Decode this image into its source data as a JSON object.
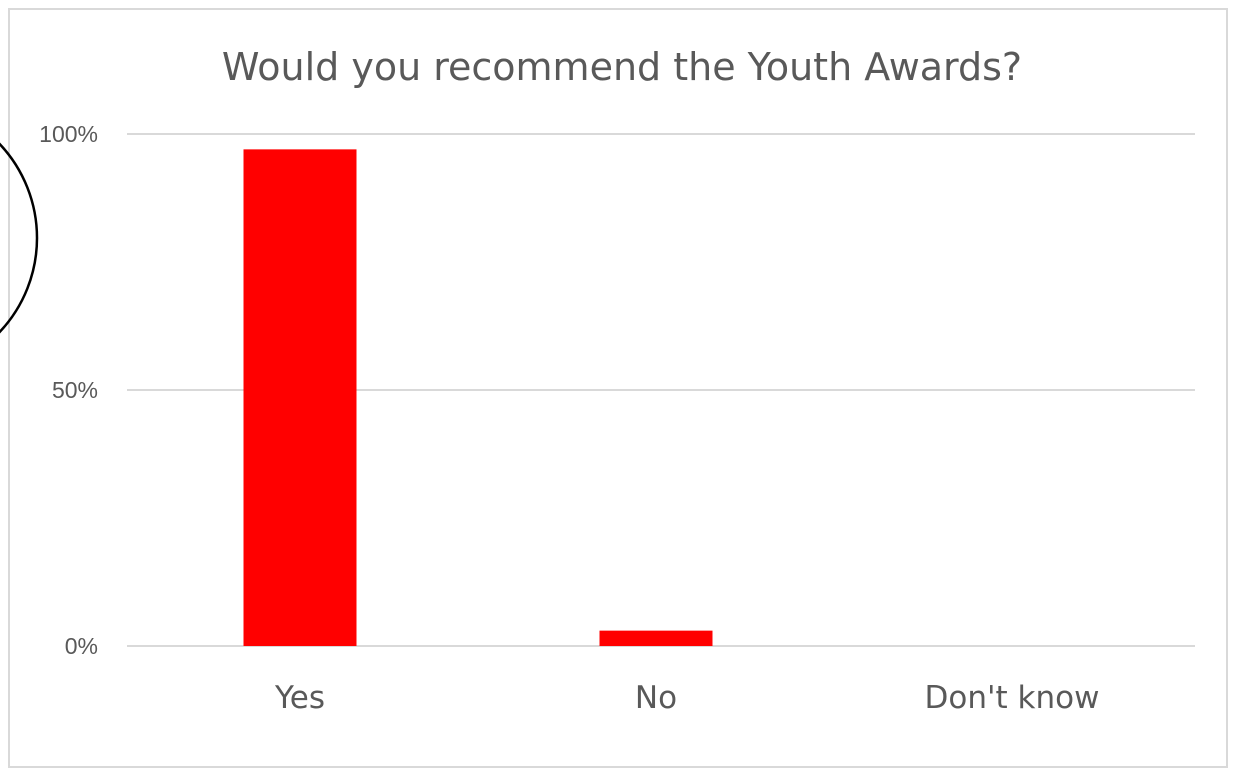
{
  "chart_data": {
    "type": "bar",
    "title": "Would you recommend the Youth Awards?",
    "categories": [
      "Yes",
      "No",
      "Don't know"
    ],
    "values": [
      97,
      3,
      0
    ],
    "ylim": [
      0,
      100
    ],
    "yticks": [
      {
        "value": 0,
        "label": "0%"
      },
      {
        "value": 50,
        "label": "50%"
      },
      {
        "value": 100,
        "label": "100%"
      }
    ],
    "xlabel": "",
    "ylabel": "",
    "grid": true,
    "legend": "none"
  },
  "colors": {
    "bar": "#ff0000",
    "gridline": "#d9d9d9",
    "text": "#595959"
  }
}
